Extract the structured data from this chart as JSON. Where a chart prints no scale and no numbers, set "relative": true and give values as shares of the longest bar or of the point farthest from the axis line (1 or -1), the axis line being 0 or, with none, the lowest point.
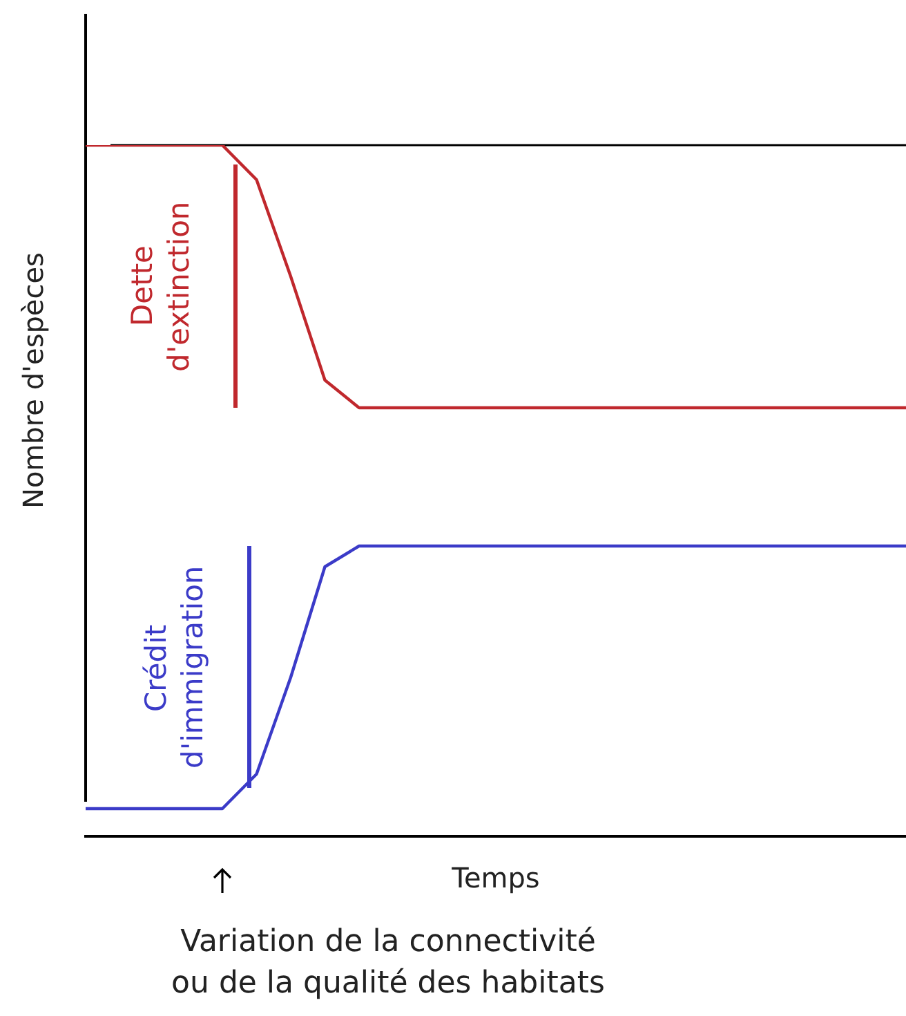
{
  "chart_data": {
    "type": "line",
    "relative": true,
    "xlabel": "Temps",
    "ylabel": "Nombre d'espèces",
    "grid": false,
    "legend": false,
    "marker": "none",
    "line_style": "solid",
    "categories": [
      null,
      null,
      null,
      null,
      null,
      null,
      null,
      null,
      null,
      null,
      null,
      null,
      null,
      null,
      null,
      null,
      null,
      null,
      null,
      null,
      null,
      null,
      null,
      null,
      null
    ],
    "series": [
      {
        "color": "#c0282d",
        "values": [
          1,
          1,
          1,
          1,
          1,
          0.95,
          0.81,
          0.66,
          0.62,
          0.62,
          0.62,
          0.62,
          0.62,
          0.62,
          0.62,
          0.62,
          0.62,
          0.62,
          0.62,
          0.62,
          0.62,
          0.62,
          0.62,
          0.62,
          0.62
        ]
      },
      {
        "color": "#3b3bc8",
        "values": [
          0.04,
          0.04,
          0.04,
          0.04,
          0.04,
          0.09,
          0.23,
          0.39,
          0.42,
          0.42,
          0.42,
          0.42,
          0.42,
          0.42,
          0.42,
          0.42,
          0.42,
          0.42,
          0.42,
          0.42,
          0.42,
          0.42,
          0.42,
          0.42,
          0.42
        ]
      }
    ],
    "ref_lines": [
      {
        "axis": "y",
        "value": 1,
        "color": "#000000"
      }
    ],
    "annotations": [
      "Dette d'extinction",
      "Crédit d'immigration",
      "Variation de la connectivité ou de la qualité des habitats"
    ]
  }
}
